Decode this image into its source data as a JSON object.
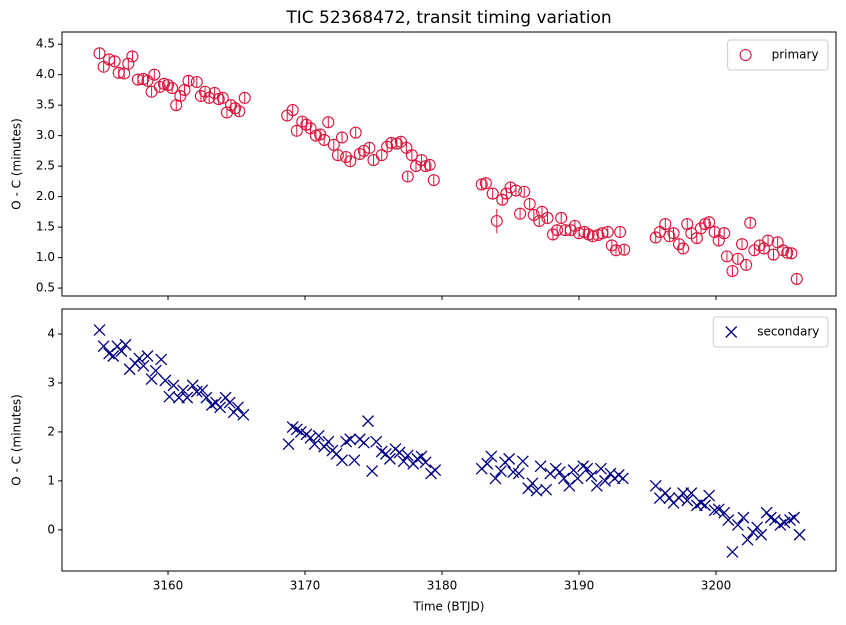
{
  "chart_data": [
    {
      "type": "scatter",
      "title": "TIC 52368472, transit timing variation",
      "ylabel": "O - C (minutes)",
      "xlim": [
        3152.26,
        3208.76
      ],
      "ylim": [
        0.37,
        4.7
      ],
      "xticks": [
        3160,
        3170,
        3180,
        3190,
        3200
      ],
      "xtick_labels": false,
      "yticks": [
        0.5,
        {
          "value": 1,
          "label": "1.0"
        },
        1.5,
        {
          "value": 2,
          "label": "2.0"
        },
        2.5,
        {
          "value": 3,
          "label": "3.0"
        },
        3.5,
        {
          "value": 4,
          "label": "4.0"
        },
        4.5
      ],
      "legend": "upper right",
      "series": [
        {
          "name": "primary",
          "color": "#dc143c",
          "marker": "circle",
          "x": [
            3155.0,
            3155.3,
            3155.7,
            3156.1,
            3156.4,
            3156.8,
            3157.1,
            3157.4,
            3157.8,
            3158.2,
            3158.5,
            3158.8,
            3159.0,
            3159.4,
            3159.7,
            3160.0,
            3160.3,
            3160.6,
            3160.9,
            3161.2,
            3161.5,
            3162.1,
            3162.4,
            3162.7,
            3163.0,
            3163.4,
            3163.7,
            3164.0,
            3164.3,
            3164.6,
            3164.9,
            3165.2,
            3165.6,
            3168.7,
            3169.1,
            3169.4,
            3169.8,
            3170.1,
            3170.4,
            3170.8,
            3171.1,
            3171.4,
            3171.7,
            3172.1,
            3172.4,
            3172.7,
            3173.0,
            3173.3,
            3173.7,
            3174.0,
            3174.3,
            3174.7,
            3175.0,
            3175.6,
            3176.0,
            3176.3,
            3176.7,
            3177.0,
            3177.4,
            3177.5,
            3177.8,
            3178.1,
            3178.5,
            3178.8,
            3179.1,
            3179.4,
            3182.9,
            3183.2,
            3183.7,
            3184.0,
            3184.4,
            3184.7,
            3185.0,
            3185.4,
            3185.7,
            3186.0,
            3186.4,
            3186.7,
            3187.1,
            3187.3,
            3187.7,
            3188.1,
            3188.4,
            3188.7,
            3189.0,
            3189.4,
            3189.7,
            3190.0,
            3190.4,
            3190.7,
            3191.0,
            3191.4,
            3191.7,
            3192.1,
            3192.4,
            3192.7,
            3193.0,
            3193.3,
            3195.6,
            3195.9,
            3196.3,
            3196.6,
            3196.9,
            3197.3,
            3197.6,
            3197.9,
            3198.2,
            3198.6,
            3198.9,
            3199.2,
            3199.5,
            3199.9,
            3200.2,
            3200.6,
            3200.8,
            3201.2,
            3201.6,
            3201.9,
            3202.2,
            3202.5,
            3202.8,
            3203.2,
            3203.5,
            3203.8,
            3204.2,
            3204.5,
            3204.9,
            3205.2,
            3205.5,
            3205.9
          ],
          "values": [
            4.35,
            4.13,
            4.25,
            4.22,
            4.03,
            4.02,
            4.18,
            4.3,
            3.92,
            3.93,
            3.9,
            3.72,
            4.0,
            3.8,
            3.85,
            3.83,
            3.78,
            3.5,
            3.65,
            3.75,
            3.9,
            3.88,
            3.65,
            3.72,
            3.62,
            3.7,
            3.6,
            3.62,
            3.38,
            3.5,
            3.45,
            3.4,
            3.62,
            3.33,
            3.42,
            3.08,
            3.23,
            3.18,
            3.12,
            3.0,
            3.02,
            2.93,
            3.22,
            2.85,
            2.68,
            2.97,
            2.65,
            2.58,
            3.05,
            2.7,
            2.75,
            2.8,
            2.6,
            2.68,
            2.82,
            2.88,
            2.87,
            2.9,
            2.8,
            2.33,
            2.68,
            2.5,
            2.6,
            2.5,
            2.52,
            2.27,
            2.2,
            2.22,
            2.05,
            1.6,
            1.95,
            2.05,
            2.15,
            2.1,
            1.72,
            2.08,
            1.88,
            1.7,
            1.6,
            1.75,
            1.65,
            1.38,
            1.45,
            1.65,
            1.45,
            1.45,
            1.52,
            1.4,
            1.42,
            1.38,
            1.35,
            1.37,
            1.4,
            1.42,
            1.2,
            1.12,
            1.42,
            1.13,
            1.33,
            1.42,
            1.55,
            1.35,
            1.4,
            1.22,
            1.15,
            1.55,
            1.4,
            1.32,
            1.48,
            1.55,
            1.58,
            1.42,
            1.28,
            1.4,
            1.02,
            0.78,
            0.98,
            1.22,
            0.88,
            1.57,
            1.12,
            1.2,
            1.15,
            1.28,
            1.05,
            1.25,
            1.12,
            1.08,
            1.07,
            0.65
          ],
          "yerr": [
            0.09,
            0.09,
            0.09,
            0.09,
            0.09,
            0.09,
            0.09,
            0.09,
            0.09,
            0.09,
            0.09,
            0.09,
            0.09,
            0.09,
            0.09,
            0.09,
            0.09,
            0.09,
            0.09,
            0.09,
            0.09,
            0.09,
            0.09,
            0.09,
            0.09,
            0.09,
            0.09,
            0.09,
            0.09,
            0.09,
            0.09,
            0.09,
            0.09,
            0.09,
            0.09,
            0.09,
            0.09,
            0.09,
            0.09,
            0.09,
            0.09,
            0.09,
            0.09,
            0.09,
            0.09,
            0.09,
            0.09,
            0.09,
            0.09,
            0.09,
            0.09,
            0.09,
            0.09,
            0.09,
            0.09,
            0.09,
            0.09,
            0.09,
            0.09,
            0.09,
            0.09,
            0.09,
            0.09,
            0.09,
            0.09,
            0.09,
            0.09,
            0.09,
            0.09,
            0.2,
            0.09,
            0.09,
            0.09,
            0.09,
            0.09,
            0.09,
            0.09,
            0.09,
            0.09,
            0.09,
            0.09,
            0.09,
            0.09,
            0.09,
            0.09,
            0.09,
            0.09,
            0.09,
            0.09,
            0.09,
            0.09,
            0.09,
            0.09,
            0.09,
            0.09,
            0.09,
            0.09,
            0.09,
            0.09,
            0.09,
            0.09,
            0.09,
            0.09,
            0.09,
            0.09,
            0.09,
            0.09,
            0.09,
            0.09,
            0.09,
            0.09,
            0.09,
            0.09,
            0.09,
            0.09,
            0.09,
            0.09,
            0.09,
            0.09,
            0.09,
            0.09,
            0.09,
            0.09,
            0.09,
            0.09,
            0.09,
            0.09,
            0.09,
            0.09,
            0.09
          ]
        }
      ]
    },
    {
      "type": "scatter",
      "xlabel": "Time (BTJD)",
      "ylabel": "O - C (minutes)",
      "xlim": [
        3152.26,
        3208.76
      ],
      "ylim": [
        -0.84,
        4.51
      ],
      "xticks": [
        3160,
        3170,
        3180,
        3190,
        3200
      ],
      "yticks": [
        0,
        1,
        2,
        3,
        4
      ],
      "legend": "upper right",
      "series": [
        {
          "name": "secondary",
          "color": "#000080",
          "marker": "x",
          "x": [
            3155.0,
            3155.3,
            3155.7,
            3156.0,
            3156.3,
            3156.6,
            3156.9,
            3157.2,
            3157.6,
            3157.9,
            3158.2,
            3158.5,
            3158.8,
            3159.1,
            3159.5,
            3159.8,
            3160.1,
            3160.4,
            3160.8,
            3161.1,
            3161.4,
            3161.8,
            3162.1,
            3162.5,
            3162.8,
            3163.2,
            3163.5,
            3163.8,
            3164.2,
            3164.5,
            3164.8,
            3165.1,
            3165.5,
            3168.8,
            3169.1,
            3169.4,
            3169.7,
            3170.1,
            3170.4,
            3170.7,
            3171.0,
            3171.4,
            3171.7,
            3172.0,
            3172.3,
            3172.7,
            3173.0,
            3173.3,
            3173.6,
            3174.0,
            3174.3,
            3174.6,
            3174.9,
            3175.2,
            3175.6,
            3175.9,
            3176.2,
            3176.6,
            3176.9,
            3177.2,
            3177.5,
            3177.9,
            3178.2,
            3178.5,
            3178.8,
            3179.2,
            3179.5,
            3182.9,
            3183.3,
            3183.6,
            3183.9,
            3184.3,
            3184.6,
            3184.9,
            3185.2,
            3185.6,
            3185.9,
            3186.3,
            3186.6,
            3186.9,
            3187.2,
            3187.6,
            3187.9,
            3188.3,
            3188.6,
            3188.9,
            3189.3,
            3189.6,
            3189.9,
            3190.3,
            3190.6,
            3190.9,
            3191.3,
            3191.6,
            3191.9,
            3192.3,
            3192.6,
            3192.9,
            3193.2,
            3195.6,
            3195.9,
            3196.3,
            3196.6,
            3196.9,
            3197.3,
            3197.6,
            3197.9,
            3198.2,
            3198.6,
            3198.9,
            3199.2,
            3199.5,
            3199.9,
            3200.2,
            3200.6,
            3200.9,
            3201.2,
            3201.6,
            3202.0,
            3202.3,
            3202.7,
            3203.0,
            3203.3,
            3203.7,
            3204.0,
            3204.3,
            3204.7,
            3205.0,
            3205.4,
            3205.7,
            3206.1
          ],
          "values": [
            4.08,
            3.75,
            3.6,
            3.55,
            3.75,
            3.65,
            3.78,
            3.28,
            3.4,
            3.5,
            3.35,
            3.55,
            3.08,
            3.25,
            3.48,
            3.05,
            2.72,
            2.95,
            2.7,
            2.85,
            2.7,
            2.95,
            2.82,
            2.85,
            2.7,
            2.55,
            2.6,
            2.5,
            2.7,
            2.6,
            2.4,
            2.5,
            2.35,
            1.75,
            2.1,
            2.05,
            2.0,
            1.95,
            1.88,
            1.75,
            1.92,
            1.7,
            1.8,
            1.62,
            1.55,
            1.42,
            1.8,
            1.85,
            1.42,
            1.85,
            1.78,
            2.22,
            1.2,
            1.8,
            1.6,
            1.55,
            1.45,
            1.65,
            1.58,
            1.4,
            1.52,
            1.35,
            1.45,
            1.5,
            1.38,
            1.15,
            1.22,
            1.25,
            1.35,
            1.5,
            1.05,
            1.2,
            1.38,
            1.45,
            1.18,
            1.15,
            1.4,
            0.85,
            0.95,
            0.8,
            1.3,
            0.82,
            1.15,
            1.25,
            1.18,
            1.05,
            0.9,
            1.22,
            1.05,
            1.3,
            1.25,
            1.1,
            0.9,
            1.25,
            1.0,
            1.15,
            1.05,
            1.12,
            1.05,
            0.9,
            0.65,
            0.75,
            0.65,
            0.55,
            0.65,
            0.75,
            0.6,
            0.75,
            0.5,
            0.55,
            0.5,
            0.7,
            0.4,
            0.42,
            0.35,
            0.2,
            -0.45,
            0.1,
            0.25,
            -0.2,
            -0.05,
            0.05,
            -0.1,
            0.35,
            0.25,
            0.2,
            0.1,
            0.15,
            0.2,
            0.25,
            -0.1
          ]
        }
      ]
    }
  ]
}
